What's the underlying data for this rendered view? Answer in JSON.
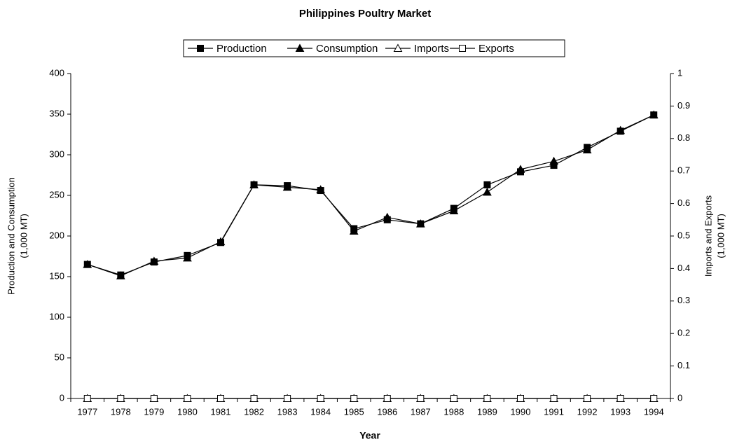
{
  "chart_data": {
    "type": "line",
    "title": "Philippines Poultry Market",
    "xlabel": "Year",
    "ylabel": [
      "Production and Consumption",
      "(1,000 MT)"
    ],
    "y2label": [
      "Imports and Exports",
      "(1,000 MT)"
    ],
    "categories": [
      "1977",
      "1978",
      "1979",
      "1980",
      "1981",
      "1982",
      "1983",
      "1984",
      "1985",
      "1986",
      "1987",
      "1988",
      "1989",
      "1990",
      "1991",
      "1992",
      "1993",
      "1994"
    ],
    "ylim": [
      0,
      400
    ],
    "yticks": [
      0,
      50,
      100,
      150,
      200,
      250,
      300,
      350,
      400
    ],
    "y2lim": [
      0,
      1
    ],
    "y2ticks": [
      0,
      0.1,
      0.2,
      0.3,
      0.4,
      0.5,
      0.6,
      0.7,
      0.8,
      0.9,
      1
    ],
    "grid": false,
    "legend": "top",
    "series": [
      {
        "name": "Production",
        "color": "#000000",
        "marker": "filled-square",
        "values": [
          165,
          152,
          168,
          176,
          192,
          263,
          262,
          256,
          209,
          220,
          215,
          234,
          263,
          279,
          287,
          309,
          329,
          349
        ]
      },
      {
        "name": "Consumption",
        "color": "#000000",
        "marker": "filled-triangle",
        "values": [
          165,
          151,
          169,
          173,
          193,
          263,
          260,
          257,
          206,
          223,
          215,
          231,
          254,
          282,
          292,
          306,
          330,
          349
        ]
      },
      {
        "name": "Imports",
        "color": "#000000",
        "marker": "open-triangle",
        "axis": "y2",
        "values": [
          0,
          0,
          0,
          0,
          0,
          0,
          0,
          0,
          0,
          0,
          0,
          0,
          0,
          0,
          0,
          0,
          0,
          0
        ]
      },
      {
        "name": "Exports",
        "color": "#000000",
        "marker": "open-square",
        "axis": "y2",
        "values": [
          0,
          0,
          0,
          0,
          0,
          0,
          0,
          0,
          0,
          0,
          0,
          0,
          0,
          0,
          0,
          0,
          0,
          0
        ]
      }
    ]
  }
}
